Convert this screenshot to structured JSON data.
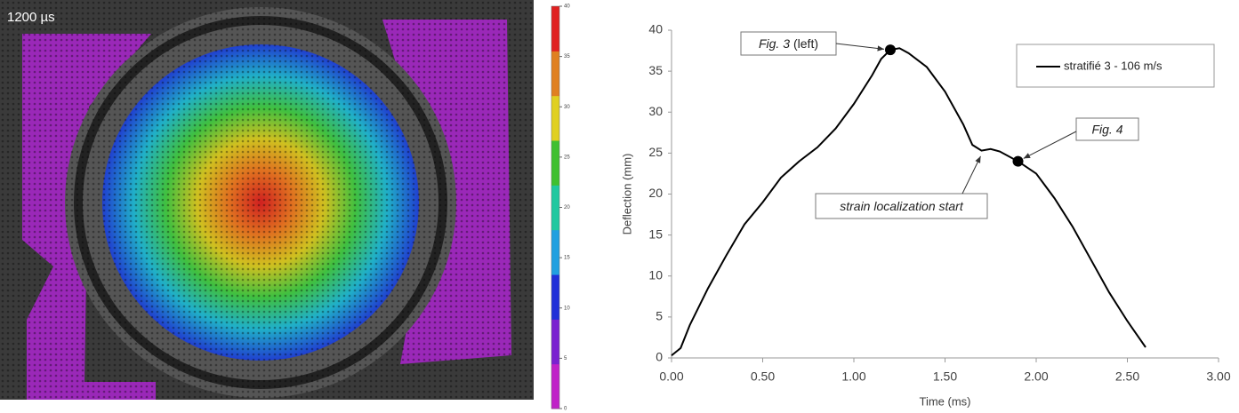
{
  "chart_data": [
    {
      "type": "colorbar",
      "title": "1200 µs",
      "colors": [
        "#c020c8",
        "#7a20d0",
        "#2030d8",
        "#20a0e0",
        "#20c8a0",
        "#40c030",
        "#e0d020",
        "#e08020",
        "#e02020"
      ],
      "ylim": [
        0,
        40
      ],
      "yticks": [
        0,
        5,
        10,
        15,
        20,
        25,
        30,
        35,
        40
      ]
    },
    {
      "type": "line",
      "xlabel": "Time (ms)",
      "ylabel": "Deflection (mm)",
      "x": [
        0,
        0.05,
        0.1,
        0.2,
        0.3,
        0.4,
        0.5,
        0.6,
        0.7,
        0.8,
        0.9,
        1.0,
        1.1,
        1.15,
        1.2,
        1.25,
        1.3,
        1.4,
        1.5,
        1.6,
        1.65,
        1.7,
        1.75,
        1.8,
        1.9,
        2.0,
        2.05,
        2.1,
        2.2,
        2.3,
        2.4,
        2.5,
        2.6
      ],
      "series": [
        {
          "name": "stratifié 3 - 106 m/s",
          "color": "#000000",
          "values": [
            0.3,
            1.2,
            4,
            8.5,
            12.5,
            16.3,
            19,
            22,
            24,
            25.7,
            28,
            31,
            34.5,
            36.5,
            37.6,
            37.8,
            37.2,
            35.5,
            32.5,
            28.5,
            26,
            25.3,
            25.5,
            25.2,
            24,
            22.5,
            21,
            19.5,
            16,
            12,
            8,
            4.5,
            1.3
          ]
        }
      ],
      "xlim": [
        0,
        3
      ],
      "xticks": [
        {
          "value": 0,
          "label": "0.00"
        },
        {
          "value": 0.5,
          "label": "0.50"
        },
        {
          "value": 1,
          "label": "1.00"
        },
        {
          "value": 1.5,
          "label": "1.50"
        },
        {
          "value": 2,
          "label": "2.00"
        },
        {
          "value": 2.5,
          "label": "2.50"
        },
        {
          "value": 3,
          "label": "3.00"
        }
      ],
      "ylim": [
        0,
        40
      ],
      "yticks": [
        0,
        5,
        10,
        15,
        20,
        25,
        30,
        35,
        40
      ],
      "grid": false,
      "legend": "upper right",
      "annotations": [
        {
          "text": [
            "Fig. 3",
            "(left)"
          ],
          "x": 1.2,
          "y": 37.6,
          "marker": true
        },
        {
          "text": [
            "Fig. 4"
          ],
          "x": 1.9,
          "y": 24,
          "marker": true
        },
        {
          "text": [
            "strain localization start"
          ],
          "x": 1.71,
          "y": 25.3,
          "marker": false
        }
      ]
    }
  ]
}
